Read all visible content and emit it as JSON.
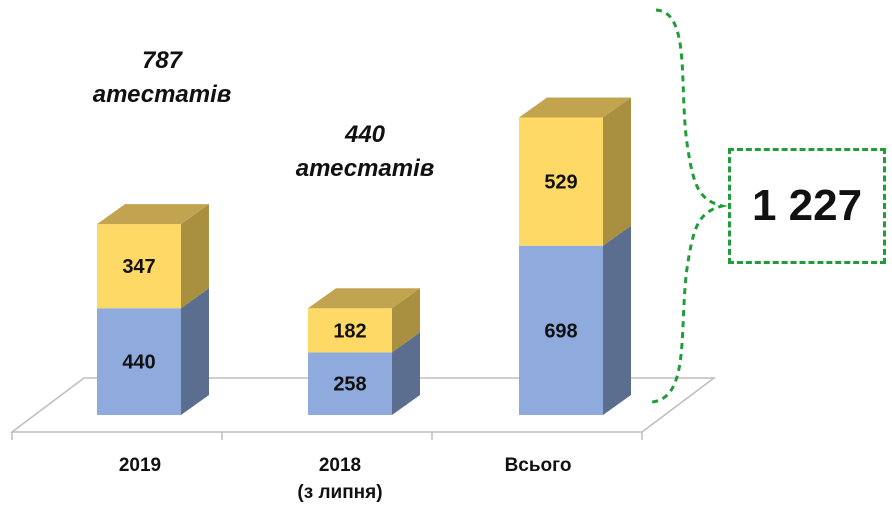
{
  "chart_data": {
    "type": "bar",
    "stacked": true,
    "categories": [
      "2019",
      "2018",
      "Всього"
    ],
    "category_sublabels": [
      "",
      "(з липня)",
      ""
    ],
    "series": [
      {
        "values": [
          440,
          258,
          698
        ],
        "color": "#8faadc"
      },
      {
        "values": [
          347,
          182,
          529
        ],
        "color": "#ffd966"
      }
    ],
    "annotations": [
      {
        "line1": "787",
        "line2": "атестатів"
      },
      {
        "line1": "440",
        "line2": "атестатів"
      }
    ],
    "total_label": "1 227",
    "ylim": [
      0,
      1300
    ],
    "grid": false
  }
}
